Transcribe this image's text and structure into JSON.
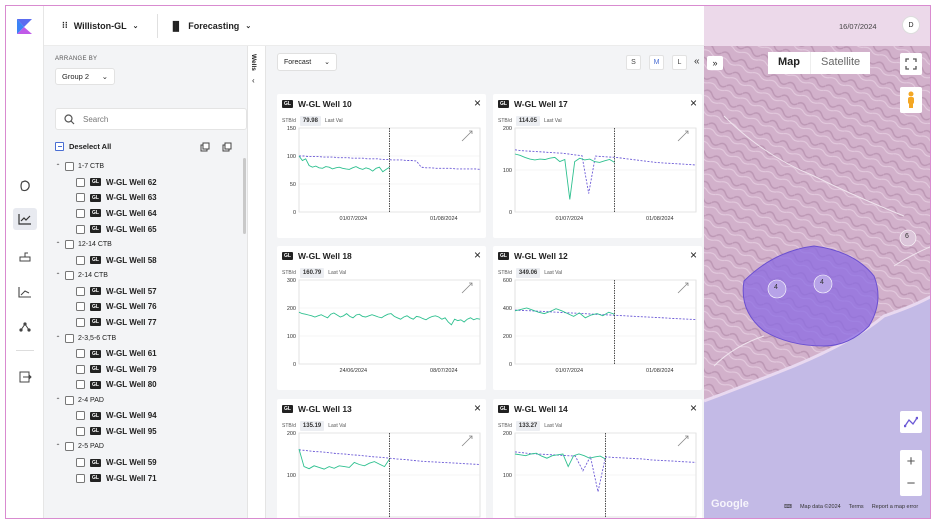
{
  "header": {
    "location": "Williston-GL",
    "module": "Forecasting",
    "date": "16/07/2024",
    "avatar": "D"
  },
  "panel": {
    "arrange_label": "ARRANGE BY",
    "group_value": "Group 2",
    "search_placeholder": "Search",
    "deselect_label": "Deselect All",
    "wells_tab": "Wells",
    "groups": [
      {
        "label": "1-7 CTB",
        "wells": [
          "W-GL Well 62",
          "W-GL Well 63",
          "W-GL Well 64",
          "W-GL Well 65"
        ]
      },
      {
        "label": "12-14 CTB",
        "wells": [
          "W-GL Well 58"
        ]
      },
      {
        "label": "2-14 CTB",
        "wells": [
          "W-GL Well 57",
          "W-GL Well 76",
          "W-GL Well 77"
        ]
      },
      {
        "label": "2-3,5-6 CTB",
        "wells": [
          "W-GL Well 61",
          "W-GL Well 79",
          "W-GL Well 80"
        ]
      },
      {
        "label": "2-4 PAD",
        "wells": [
          "W-GL Well 94",
          "W-GL Well 95"
        ]
      },
      {
        "label": "2-5 PAD",
        "wells": [
          "W-GL Well 59",
          "W-GL Well 71"
        ]
      }
    ],
    "badge": "GL"
  },
  "toolbar": {
    "forecast_label": "Forecast",
    "sizes": [
      "S",
      "M",
      "L"
    ],
    "active_size": "M"
  },
  "cards": [
    {
      "title": "W-GL Well 10",
      "unit": "STB/d",
      "value": "79.98",
      "last": "Last Val",
      "ylim": [
        0,
        150
      ],
      "yticks": [
        0,
        50,
        100,
        150
      ],
      "xticks": [
        "01/07/2024",
        "01/08/2024"
      ],
      "divider": 0.5,
      "actual": [
        100,
        92,
        95,
        83,
        80,
        82,
        79,
        78,
        81,
        80,
        77,
        79,
        80,
        78,
        77,
        76,
        79,
        81,
        78,
        76,
        79,
        77,
        73,
        78,
        80,
        72,
        76,
        80
      ],
      "forecast": [
        100,
        100,
        99,
        99,
        99,
        98,
        98,
        98,
        97,
        97,
        97,
        96,
        96,
        96,
        95,
        95,
        95,
        94,
        94,
        93,
        93,
        93,
        92,
        92,
        91,
        80,
        79,
        79,
        78,
        78,
        78,
        78,
        77,
        77,
        77,
        77,
        77,
        76
      ]
    },
    {
      "title": "W-GL Well 17",
      "unit": "STB/d",
      "value": "114.05",
      "last": "Last Val",
      "ylim": [
        0,
        200
      ],
      "yticks": [
        0,
        100,
        200
      ],
      "xticks": [
        "01/07/2024",
        "01/08/2024"
      ],
      "divider": 0.55,
      "actual": [
        138,
        135,
        130,
        126,
        124,
        126,
        125,
        128,
        130,
        120,
        125,
        30,
        120,
        128,
        124,
        126,
        120,
        118,
        122,
        125,
        118
      ],
      "forecast": [
        148,
        146,
        145,
        144,
        143,
        142,
        141,
        140,
        138,
        136,
        134,
        44,
        133,
        132,
        131,
        130,
        128,
        126,
        124,
        122,
        120,
        118,
        117,
        116,
        115,
        114,
        113,
        112
      ]
    },
    {
      "title": "W-GL Well 18",
      "unit": "STB/d",
      "value": "160.79",
      "last": "Last Val",
      "ylim": [
        0,
        300
      ],
      "yticks": [
        0,
        100,
        200,
        300
      ],
      "xticks": [
        "24/06/2024",
        "08/07/2024"
      ],
      "divider": null,
      "actual": [
        185,
        180,
        178,
        175,
        172,
        168,
        172,
        176,
        170,
        165,
        178,
        182,
        175,
        168,
        172,
        180,
        170,
        165,
        175,
        178,
        170,
        168,
        172,
        176,
        172,
        168,
        165,
        172,
        178,
        180,
        170,
        165,
        160,
        168,
        172,
        165,
        160,
        170,
        168,
        162,
        158,
        165,
        170,
        172,
        168,
        160,
        165,
        150,
        140,
        160,
        155,
        158,
        150,
        160,
        165,
        158,
        162,
        160
      ]
    },
    {
      "title": "W-GL Well 12",
      "unit": "STB/d",
      "value": "349.06",
      "last": "Last Val",
      "ylim": [
        0,
        600
      ],
      "yticks": [
        0,
        200,
        400,
        600
      ],
      "xticks": [
        "01/07/2024",
        "01/08/2024"
      ],
      "divider": 0.55,
      "actual": [
        380,
        390,
        400,
        385,
        370,
        360,
        375,
        395,
        380,
        360,
        340,
        365,
        330,
        350,
        360,
        345,
        370,
        355
      ],
      "forecast": [
        385,
        382,
        380,
        377,
        374,
        371,
        368,
        365,
        362,
        359,
        356,
        353,
        350,
        347,
        344,
        341,
        338,
        335,
        332,
        329,
        326,
        323,
        320,
        318
      ]
    },
    {
      "title": "W-GL Well 13",
      "unit": "STB/d",
      "value": "135.19",
      "last": "Last Val",
      "ylim": [
        0,
        200
      ],
      "yticks": [
        100,
        200
      ],
      "xticks": [],
      "divider": 0.5,
      "actual": [
        162,
        120,
        115,
        122,
        118,
        114,
        120,
        116,
        122,
        120,
        118,
        130,
        125,
        122,
        128,
        132,
        126,
        120,
        138
      ],
      "forecast": [
        160,
        158,
        156,
        155,
        153,
        151,
        150,
        148,
        147,
        145,
        143,
        142,
        140,
        138,
        137,
        135,
        133,
        132,
        131,
        130,
        129,
        128,
        127,
        126,
        125
      ]
    },
    {
      "title": "W-GL Well 14",
      "unit": "STB/d",
      "value": "133.27",
      "last": "Last Val",
      "ylim": [
        0,
        200
      ],
      "yticks": [
        100,
        200
      ],
      "xticks": [],
      "divider": 0.5,
      "actual": [
        150,
        148,
        146,
        150,
        152,
        145,
        140,
        146,
        148,
        150,
        120,
        146,
        150,
        146,
        140,
        143,
        145,
        138
      ],
      "forecast": [
        155,
        153,
        151,
        150,
        149,
        148,
        147,
        146,
        145,
        110,
        144,
        60,
        143,
        142,
        141,
        140,
        139,
        138,
        136,
        135,
        134,
        133,
        132,
        131,
        130
      ]
    }
  ],
  "map": {
    "type_map": "Map",
    "type_satellite": "Satellite",
    "clusters": [
      "4",
      "4",
      "6"
    ],
    "attribution": [
      "Map data ©2024",
      "Terms",
      "Report a map error"
    ],
    "logo": "Google",
    "zoom_in": "+",
    "zoom_out": "−"
  },
  "colors": {
    "actual": "#2ec08f",
    "forecast": "#6b59d6",
    "accent": "#4a6ed3",
    "polygon": "#8b6be3"
  }
}
